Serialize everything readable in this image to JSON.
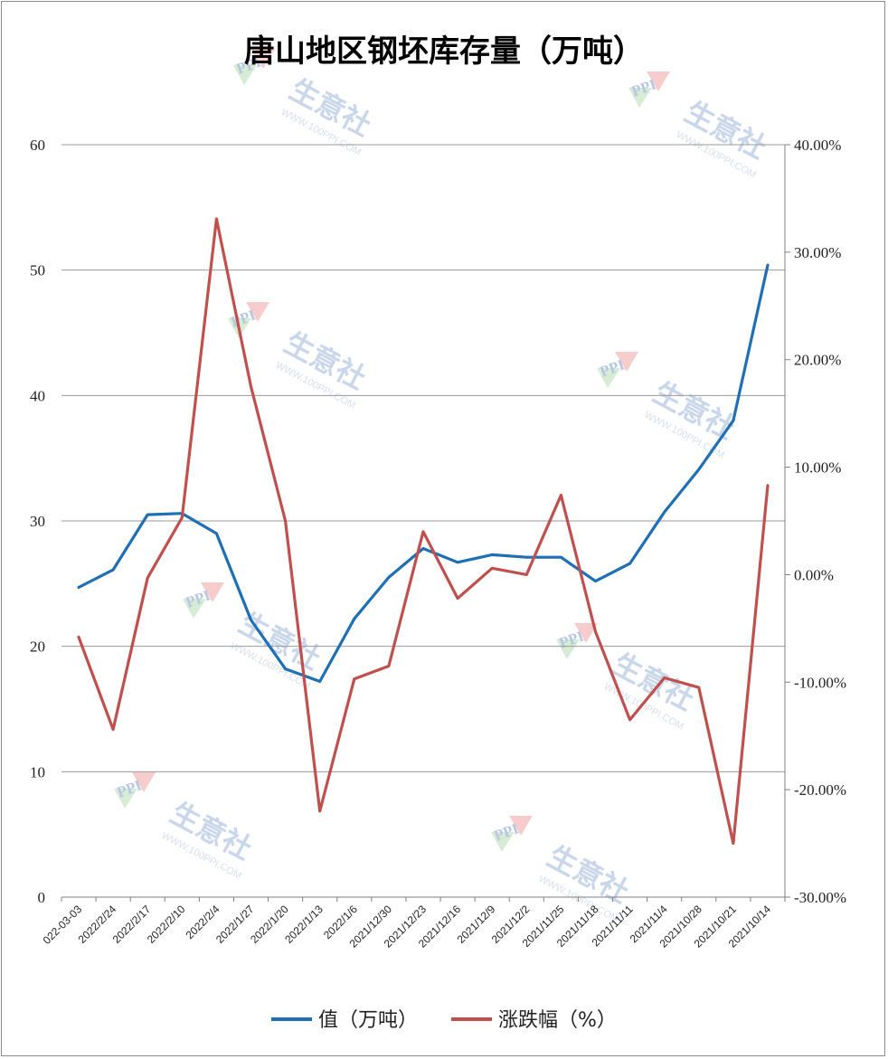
{
  "chart_data": {
    "type": "line",
    "title": "唐山地区钢坯库存量（万吨）",
    "categories": [
      "022-03-03",
      "2022/2/24",
      "2022/2/17",
      "2022/2/10",
      "2022/2/4",
      "2022/1/27",
      "2022/1/20",
      "2022/1/13",
      "2022/1/6",
      "2021/12/30",
      "2021/12/23",
      "2021/12/16",
      "2021/12/9",
      "2021/12/2",
      "2021/11/25",
      "2021/11/18",
      "2021/11/11",
      "2021/11/4",
      "2021/10/28",
      "2021/10/21",
      "2021/10/14"
    ],
    "y_left": {
      "min": 0,
      "max": 60,
      "ticks": [
        "0",
        "10",
        "20",
        "30",
        "40",
        "50",
        "60"
      ]
    },
    "y_right": {
      "min": -30,
      "max": 40,
      "ticks": [
        "-30.00%",
        "-20.00%",
        "-10.00%",
        "0.00%",
        "10.00%",
        "20.00%",
        "30.00%",
        "40.00%"
      ]
    },
    "grid": true,
    "legend_position": "bottom",
    "series": [
      {
        "name": "值（万吨）",
        "axis": "left",
        "color": "#1f6fb5",
        "values": [
          24.7,
          26.1,
          30.5,
          30.6,
          29.0,
          22.1,
          18.2,
          17.2,
          22.2,
          25.5,
          27.8,
          26.7,
          27.3,
          27.1,
          27.1,
          25.2,
          26.6,
          30.7,
          34.1,
          38.0,
          50.4
        ]
      },
      {
        "name": "涨跌幅（%）",
        "axis": "right",
        "color": "#c0504d",
        "values": [
          -5.8,
          -14.4,
          -0.3,
          5.3,
          33.1,
          17.5,
          5.0,
          -22.0,
          -9.7,
          -8.5,
          4.0,
          -2.2,
          0.6,
          0.0,
          7.4,
          -5.3,
          -13.5,
          -9.6,
          -10.5,
          -25.0,
          8.3
        ]
      }
    ]
  },
  "watermark": {
    "brand": "生意社",
    "url": "WWW.100PPI.COM",
    "logo": "PPI"
  }
}
